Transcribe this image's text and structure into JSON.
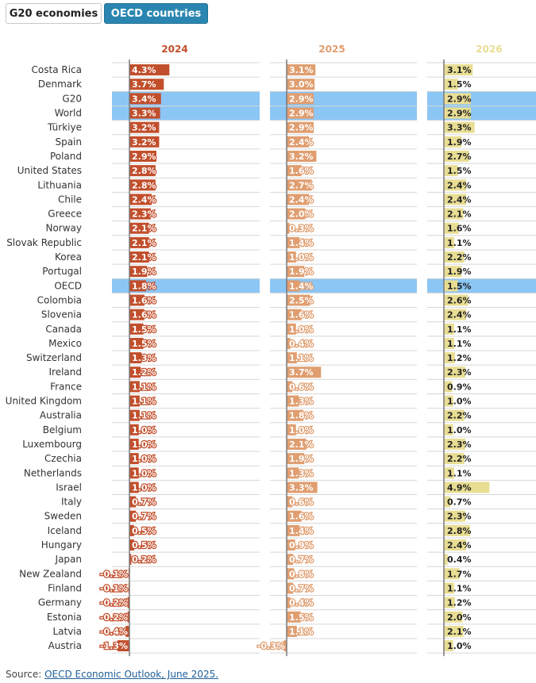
{
  "tabs": [
    {
      "label": "G20 economies",
      "active": false
    },
    {
      "label": "OECD countries",
      "active": true
    }
  ],
  "source": {
    "prefix": "Source: ",
    "link_text": "OECD Economic Outlook, June 2025."
  },
  "colors": {
    "y2024": "#c24f2c",
    "y2025": "#e09e70",
    "y2026": "#e8dd93",
    "highlight": "#8cc6f5",
    "label_light": "#ffffff",
    "label_dark": "#222222"
  },
  "chart_data": {
    "type": "bar",
    "highlighted": [
      "G20",
      "World",
      "OECD"
    ],
    "categories": [
      "Costa Rica",
      "Denmark",
      "G20",
      "World",
      "Türkiye",
      "Spain",
      "Poland",
      "United States",
      "Lithuania",
      "Chile",
      "Greece",
      "Norway",
      "Slovak Republic",
      "Korea",
      "Portugal",
      "OECD",
      "Colombia",
      "Slovenia",
      "Canada",
      "Mexico",
      "Switzerland",
      "Ireland",
      "France",
      "United Kingdom",
      "Australia",
      "Belgium",
      "Luxembourg",
      "Czechia",
      "Netherlands",
      "Israel",
      "Italy",
      "Sweden",
      "Iceland",
      "Hungary",
      "Japan",
      "New Zealand",
      "Finland",
      "Germany",
      "Estonia",
      "Latvia",
      "Austria"
    ],
    "series": [
      {
        "name": "2024",
        "values": [
          4.3,
          3.7,
          3.4,
          3.3,
          3.2,
          3.2,
          2.9,
          2.8,
          2.8,
          2.4,
          2.3,
          2.1,
          2.1,
          2.1,
          1.9,
          1.8,
          1.6,
          1.6,
          1.5,
          1.5,
          1.3,
          1.2,
          1.1,
          1.1,
          1.1,
          1.0,
          1.0,
          1.0,
          1.0,
          1.0,
          0.7,
          0.7,
          0.5,
          0.5,
          0.2,
          -0.1,
          -0.1,
          -0.2,
          -0.2,
          -0.4,
          -1.3
        ]
      },
      {
        "name": "2025",
        "values": [
          3.1,
          3.0,
          2.9,
          2.9,
          2.9,
          2.4,
          3.2,
          1.6,
          2.7,
          2.4,
          2.0,
          0.3,
          1.4,
          1.0,
          1.9,
          1.4,
          2.5,
          1.6,
          1.0,
          0.4,
          1.1,
          3.7,
          0.6,
          1.3,
          1.8,
          1.0,
          2.1,
          1.9,
          1.3,
          3.3,
          0.6,
          1.6,
          1.4,
          0.9,
          0.7,
          0.8,
          0.7,
          0.4,
          1.5,
          1.1,
          -0.3
        ]
      },
      {
        "name": "2026",
        "values": [
          3.1,
          1.5,
          2.9,
          2.9,
          3.3,
          1.9,
          2.7,
          1.5,
          2.4,
          2.4,
          2.1,
          1.6,
          1.1,
          2.2,
          1.9,
          1.5,
          2.6,
          2.4,
          1.1,
          1.1,
          1.2,
          2.3,
          0.9,
          1.0,
          2.2,
          1.0,
          2.3,
          2.2,
          1.1,
          4.9,
          0.7,
          2.3,
          2.8,
          2.4,
          0.4,
          1.7,
          1.1,
          1.2,
          2.0,
          2.1,
          1.0
        ]
      }
    ]
  }
}
